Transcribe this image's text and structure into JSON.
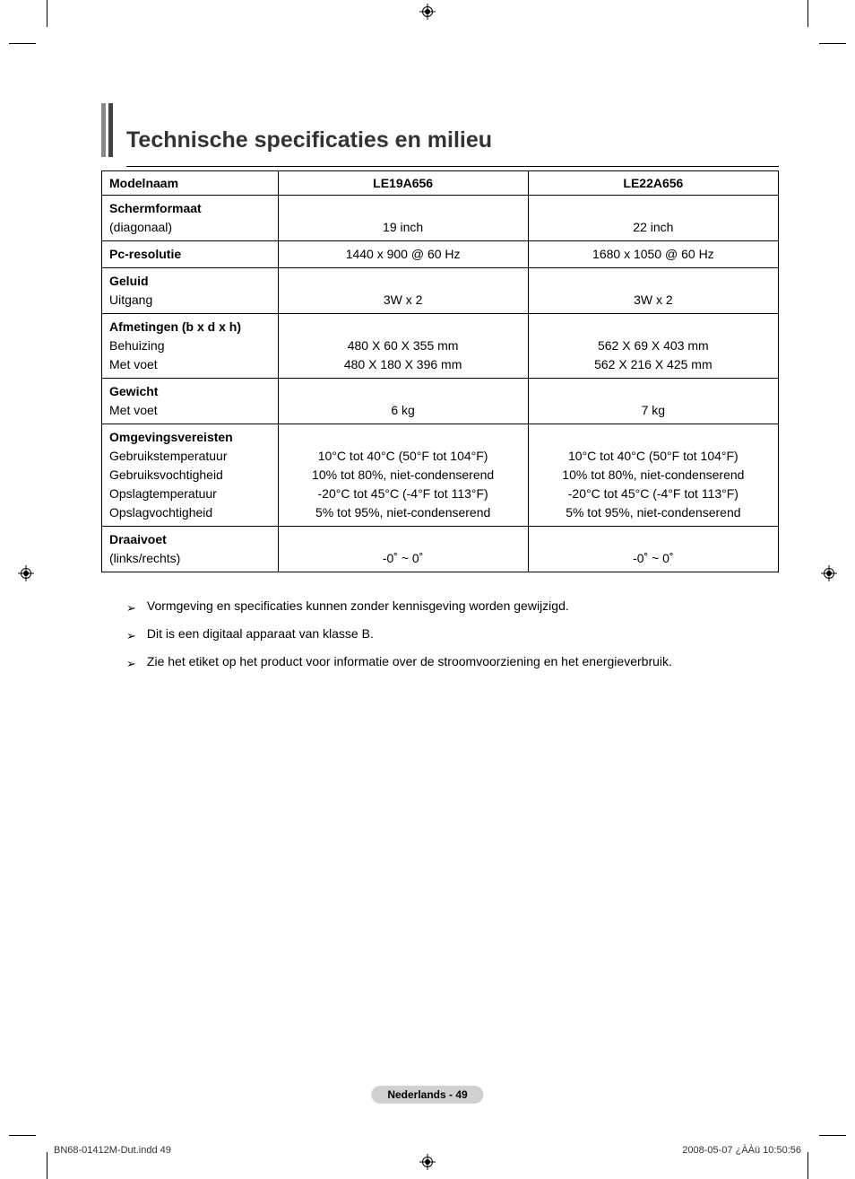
{
  "title": "Technische specificaties en milieu",
  "table": {
    "headers": {
      "label": "Modelnaam",
      "model1": "LE19A656",
      "model2": "LE22A656"
    },
    "rows": [
      {
        "label_bold": "Schermformaat",
        "label_sub": [
          "(diagonaal)"
        ],
        "m1": [
          "",
          "19 inch"
        ],
        "m2": [
          "",
          "22 inch"
        ]
      },
      {
        "label_bold": "Pc-resolutie",
        "label_sub": [],
        "m1": [
          "1440 x 900 @ 60 Hz"
        ],
        "m2": [
          "1680 x 1050 @ 60 Hz"
        ]
      },
      {
        "label_bold": "Geluid",
        "label_sub": [
          "Uitgang"
        ],
        "m1": [
          "",
          "3W x 2"
        ],
        "m2": [
          "",
          "3W x 2"
        ]
      },
      {
        "label_bold": "Afmetingen (b x d x h)",
        "label_sub": [
          "Behuizing",
          "Met voet"
        ],
        "m1": [
          "",
          "480 X 60 X 355 mm",
          "480 X 180 X 396 mm"
        ],
        "m2": [
          "",
          "562 X 69 X 403 mm",
          "562 X 216 X 425 mm"
        ]
      },
      {
        "label_bold": "Gewicht",
        "label_sub": [
          "Met voet"
        ],
        "m1": [
          "",
          "6 kg"
        ],
        "m2": [
          "",
          "7 kg"
        ]
      },
      {
        "label_bold": "Omgevingsvereisten",
        "label_sub": [
          "Gebruikstemperatuur",
          "Gebruiksvochtigheid",
          "Opslagtemperatuur",
          "Opslagvochtigheid"
        ],
        "m1": [
          "",
          "10°C tot 40°C (50°F tot 104°F)",
          "10% tot 80%, niet-condenserend",
          "-20°C tot 45°C (-4°F tot 113°F)",
          "5% tot 95%, niet-condenserend"
        ],
        "m2": [
          "",
          "10°C tot 40°C (50°F tot 104°F)",
          "10% tot 80%, niet-condenserend",
          "-20°C tot 45°C (-4°F tot 113°F)",
          "5% tot 95%, niet-condenserend"
        ]
      },
      {
        "label_bold": "Draaivoet",
        "label_sub": [
          "(links/rechts)"
        ],
        "m1": [
          "",
          "-0˚ ~ 0˚"
        ],
        "m2": [
          "",
          "-0˚ ~ 0˚"
        ]
      }
    ]
  },
  "notes": [
    "Vormgeving en specificaties kunnen zonder kennisgeving worden gewijzigd.",
    "Dit is een digitaal apparaat van klasse B.",
    "Zie het etiket op het product voor informatie over de stroomvoorziening en het energieverbruik."
  ],
  "footer": {
    "language_page": "Nederlands - 49",
    "file": "BN68-01412M-Dut.indd   49",
    "timestamp": "2008-05-07   ¿ÀÀü 10:50:56"
  }
}
